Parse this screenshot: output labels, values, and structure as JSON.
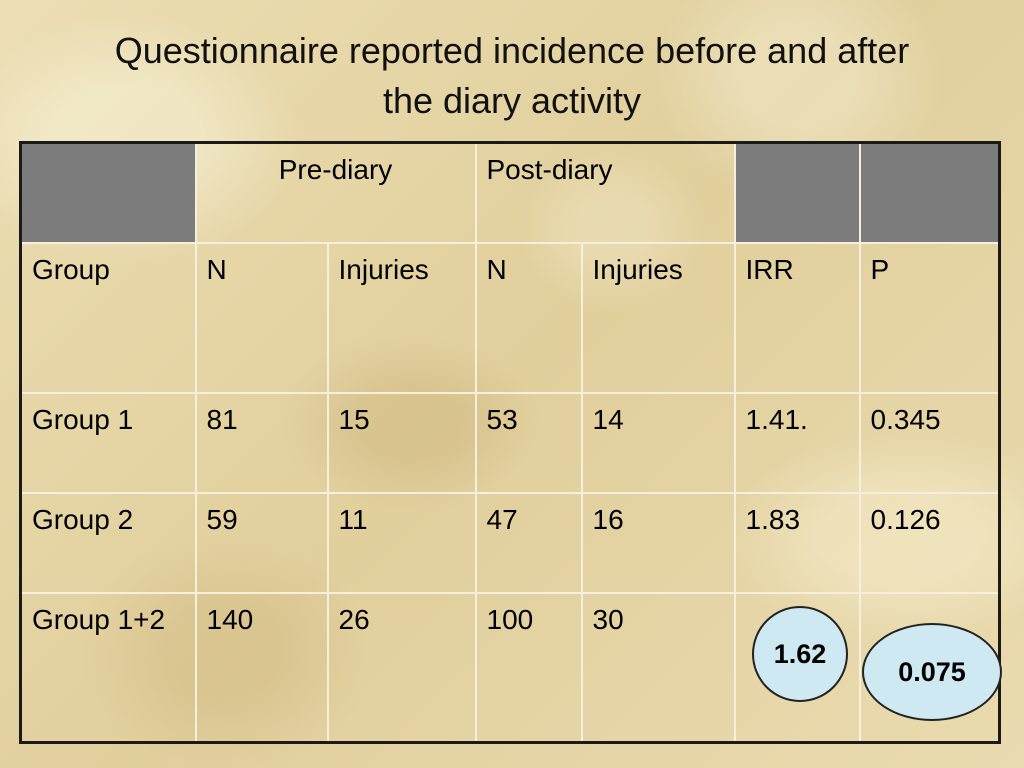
{
  "title": {
    "line1": "Questionnaire reported incidence before and after",
    "line2": "the diary activity"
  },
  "table": {
    "top_headers": {
      "pre": "Pre-diary",
      "post": "Post-diary"
    },
    "columns": [
      "Group",
      "N",
      "Injuries",
      "N",
      "Injuries",
      "IRR",
      "P"
    ],
    "rows": [
      {
        "group": "Group 1",
        "pre_n": "81",
        "pre_injuries": "15",
        "post_n": "53",
        "post_injuries": "14",
        "irr": "1.41.",
        "p": "0.345"
      },
      {
        "group": "Group 2",
        "pre_n": "59",
        "pre_injuries": "11",
        "post_n": "47",
        "post_injuries": "16",
        "irr": "1.83",
        "p": "0.126"
      },
      {
        "group": "Group 1+2",
        "pre_n": "140",
        "pre_injuries": "26",
        "post_n": "100",
        "post_injuries": "30",
        "irr": "",
        "p": ""
      }
    ]
  },
  "highlights": {
    "irr_combined": "1.62",
    "p_combined": "0.075",
    "oval_fill": "#cfe9f2"
  },
  "colors": {
    "header_gray": "#7c7c7c",
    "background": "#e6d7a8"
  }
}
